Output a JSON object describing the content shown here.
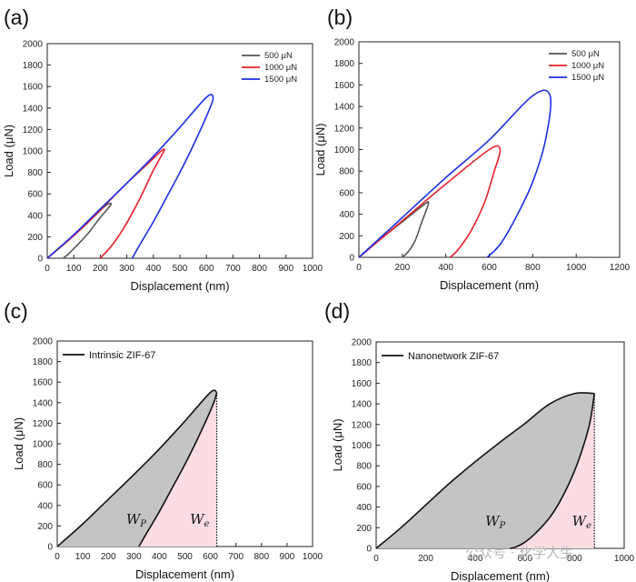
{
  "chart_data": [
    {
      "panel": "(a)",
      "type": "line",
      "xlabel": "Displacement (nm)",
      "ylabel": "Load (μN)",
      "xlim": [
        0,
        1000
      ],
      "ylim": [
        0,
        2000
      ],
      "xticks": [
        0,
        100,
        200,
        300,
        400,
        500,
        600,
        700,
        800,
        900,
        1000
      ],
      "yticks": [
        0,
        200,
        400,
        600,
        800,
        1000,
        1200,
        1400,
        1600,
        1800,
        2000
      ],
      "legend_position": "top-right",
      "series": [
        {
          "name": "500 μN",
          "color": "#555555",
          "x": [
            0,
            50,
            100,
            150,
            200,
            225,
            240,
            200,
            150,
            100,
            80,
            60
          ],
          "y": [
            0,
            105,
            215,
            325,
            445,
            500,
            500,
            380,
            220,
            90,
            40,
            0
          ]
        },
        {
          "name": "1000 μN",
          "color": "#e8202a",
          "x": [
            0,
            100,
            200,
            300,
            400,
            430,
            440,
            400,
            350,
            300,
            250,
            200
          ],
          "y": [
            0,
            210,
            450,
            700,
            930,
            1000,
            1000,
            820,
            560,
            330,
            140,
            0
          ]
        },
        {
          "name": "1500 μN",
          "color": "#1c2ee8",
          "x": [
            0,
            100,
            200,
            300,
            400,
            500,
            600,
            625,
            610,
            550,
            500,
            450,
            400,
            350,
            320
          ],
          "y": [
            0,
            220,
            460,
            700,
            950,
            1220,
            1500,
            1500,
            1380,
            1050,
            800,
            570,
            340,
            130,
            0
          ]
        }
      ]
    },
    {
      "panel": "(b)",
      "type": "line",
      "xlabel": "Displacement (nm)",
      "ylabel": "Load (μN)",
      "xlim": [
        0,
        1200
      ],
      "ylim": [
        0,
        2000
      ],
      "xticks": [
        0,
        200,
        400,
        600,
        800,
        1000,
        1200
      ],
      "yticks": [
        0,
        200,
        400,
        600,
        800,
        1000,
        1200,
        1400,
        1600,
        1800,
        2000
      ],
      "legend_position": "top-right",
      "series": [
        {
          "name": "500 μN",
          "color": "#555555",
          "x": [
            0,
            100,
            200,
            300,
            320,
            290,
            260,
            230,
            200
          ],
          "y": [
            0,
            170,
            330,
            490,
            500,
            330,
            160,
            60,
            0
          ]
        },
        {
          "name": "1000 μN",
          "color": "#e8202a",
          "x": [
            0,
            200,
            400,
            600,
            650,
            620,
            580,
            520,
            460,
            420
          ],
          "y": [
            0,
            340,
            680,
            1000,
            1000,
            780,
            520,
            260,
            80,
            0
          ]
        },
        {
          "name": "1500 μN",
          "color": "#1c2ee8",
          "x": [
            0,
            200,
            400,
            600,
            800,
            880,
            860,
            800,
            720,
            650,
            590
          ],
          "y": [
            0,
            370,
            740,
            1090,
            1500,
            1500,
            1100,
            700,
            360,
            120,
            0
          ]
        }
      ]
    },
    {
      "panel": "(c)",
      "type": "area",
      "xlabel": "Displacement (nm)",
      "ylabel": "Load (μN)",
      "xlim": [
        0,
        1000
      ],
      "ylim": [
        0,
        2000
      ],
      "xticks": [
        0,
        100,
        200,
        300,
        400,
        500,
        600,
        700,
        800,
        900,
        1000
      ],
      "yticks": [
        0,
        200,
        400,
        600,
        800,
        1000,
        1200,
        1400,
        1600,
        1800,
        2000
      ],
      "legend_position": "top-left",
      "legend": "Intrinsic ZIF-67",
      "loading": {
        "x": [
          0,
          100,
          200,
          300,
          400,
          500,
          600,
          625
        ],
        "y": [
          0,
          220,
          460,
          700,
          950,
          1220,
          1500,
          1500
        ]
      },
      "unloading": {
        "x": [
          625,
          610,
          550,
          500,
          450,
          400,
          350,
          320
        ],
        "y": [
          1500,
          1380,
          1050,
          800,
          570,
          340,
          130,
          0
        ]
      },
      "annotations": [
        {
          "base": "W",
          "sub": "P",
          "at": [
            270,
            220
          ]
        },
        {
          "base": "W",
          "sub": "e",
          "at": [
            520,
            220
          ]
        }
      ],
      "colors": {
        "wp_fill": "#c4c4c4",
        "we_fill": "#fbdde2",
        "line": "#111111"
      }
    },
    {
      "panel": "(d)",
      "type": "area",
      "xlabel": "Displacement (nm)",
      "ylabel": "Load (μN)",
      "xlim": [
        0,
        1000
      ],
      "ylim": [
        0,
        2000
      ],
      "xticks": [
        0,
        200,
        400,
        600,
        800,
        1000
      ],
      "yticks": [
        0,
        200,
        400,
        600,
        800,
        1000,
        1200,
        1400,
        1600,
        1800,
        2000
      ],
      "legend_position": "top-left",
      "legend": "Nanonetwork ZIF-67",
      "loading": {
        "x": [
          0,
          100,
          200,
          300,
          400,
          500,
          600,
          700,
          800,
          880
        ],
        "y": [
          0,
          200,
          420,
          640,
          840,
          1030,
          1210,
          1400,
          1500,
          1500
        ]
      },
      "unloading": {
        "x": [
          880,
          860,
          820,
          780,
          740,
          700,
          640,
          600,
          560,
          540
        ],
        "y": [
          1500,
          1200,
          880,
          640,
          450,
          300,
          140,
          60,
          10,
          0
        ]
      },
      "annotations": [
        {
          "base": "W",
          "sub": "P",
          "at": [
            440,
            220
          ]
        },
        {
          "base": "W",
          "sub": "e",
          "at": [
            790,
            220
          ]
        }
      ],
      "colors": {
        "wp_fill": "#c4c4c4",
        "we_fill": "#fbdde2",
        "line": "#111111"
      }
    }
  ],
  "watermark": "公众号 · 化学人生"
}
